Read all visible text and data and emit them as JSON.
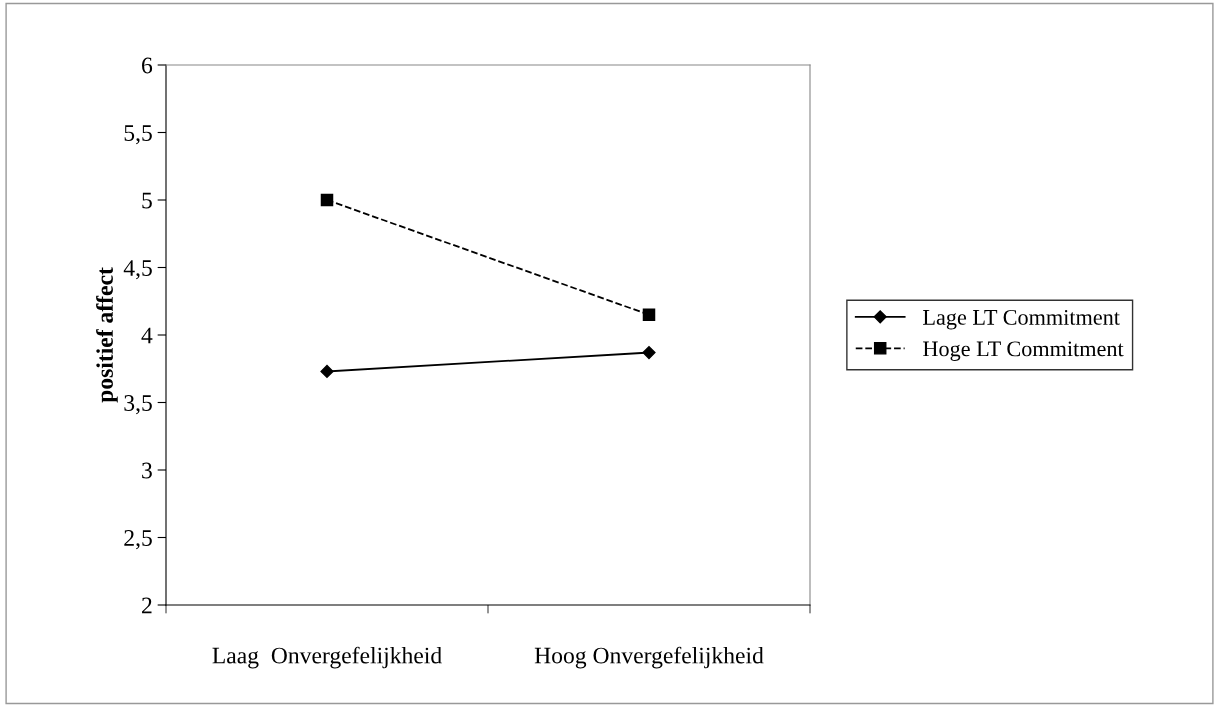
{
  "chart_data": {
    "type": "line",
    "ylabel": "positief affect",
    "categories": [
      "Laag  Onvergefelijkheid",
      "Hoog Onvergefelijkheid"
    ],
    "series": [
      {
        "name": "Lage LT Commitment",
        "color": "#000000",
        "values": [
          3.73,
          3.87
        ],
        "marker": "diamond",
        "line_style": "solid"
      },
      {
        "name": "Hoge LT Commitment",
        "color": "#000000",
        "values": [
          5.0,
          4.15
        ],
        "marker": "square",
        "line_style": "dashed"
      }
    ],
    "ylim": [
      2,
      6
    ],
    "yticks": [
      2,
      {
        "value": 2.5,
        "label": "2,5"
      },
      3,
      {
        "value": 3.5,
        "label": "3,5"
      },
      4,
      {
        "value": 4.5,
        "label": "4,5"
      },
      5,
      {
        "value": 5.5,
        "label": "5,5"
      },
      6
    ],
    "grid": false,
    "legend": "right"
  }
}
